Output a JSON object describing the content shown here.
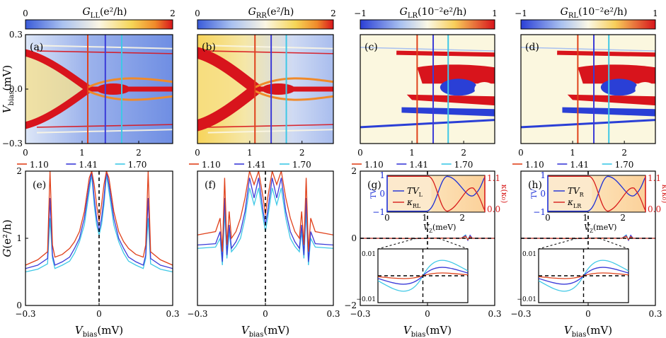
{
  "colors": {
    "vline_red": "#e0421c",
    "vline_blue": "#3b3bd8",
    "vline_cyan": "#3ec8e6",
    "trace_red": "#e0421c",
    "trace_blue": "#3b3bd8",
    "trace_cyan": "#3ec8e6",
    "inset_left_axis": "#1c2fd8",
    "inset_right_axis": "#d81c1c",
    "inset_bg": "#fbd9a8"
  },
  "chart_data": [
    {
      "id": "a",
      "type": "heatmap",
      "panel_label": "(a)",
      "colorbar": {
        "title_main": "G",
        "title_sub": "LL",
        "title_unit": "(e²/h)",
        "min_label": "0",
        "max_label": "2",
        "scheme": "sequential"
      },
      "x_ticks": [
        "0",
        "1",
        "2"
      ],
      "x_values": [
        0,
        1,
        2
      ],
      "xlim": [
        0,
        2.6
      ],
      "y_ticks": [
        "0.3",
        "0.0",
        "−0.3"
      ],
      "y_values": [
        0.3,
        0.0,
        -0.3
      ],
      "ylim": [
        -0.3,
        0.3
      ],
      "ylabel_main": "V",
      "ylabel_sub": "bias",
      "ylabel_unit": "(mV)",
      "vlines": [
        1.1,
        1.41,
        1.7
      ]
    },
    {
      "id": "b",
      "type": "heatmap",
      "panel_label": "(b)",
      "colorbar": {
        "title_main": "G",
        "title_sub": "RR",
        "title_unit": "(e²/h)",
        "min_label": "0",
        "max_label": "2",
        "scheme": "sequential"
      },
      "x_ticks": [
        "0",
        "1",
        "2"
      ],
      "x_values": [
        0,
        1,
        2
      ],
      "xlim": [
        0,
        2.6
      ],
      "vlines": [
        1.1,
        1.41,
        1.7
      ]
    },
    {
      "id": "c",
      "type": "heatmap",
      "panel_label": "(c)",
      "colorbar": {
        "title_main": "G",
        "title_sub": "LR",
        "title_unit": "(10⁻²e²/h)",
        "min_label": "−1",
        "max_label": "1",
        "scheme": "diverging"
      },
      "x_ticks": [
        "0",
        "1",
        "2"
      ],
      "x_values": [
        0,
        1,
        2
      ],
      "xlim": [
        0,
        2.6
      ],
      "vlines": [
        1.1,
        1.41,
        1.7
      ]
    },
    {
      "id": "d",
      "type": "heatmap",
      "panel_label": "(d)",
      "colorbar": {
        "title_main": "G",
        "title_sub": "RL",
        "title_unit": "(10⁻²e²/h)",
        "min_label": "−1",
        "max_label": "1",
        "scheme": "diverging"
      },
      "x_ticks": [
        "0",
        "1",
        "2"
      ],
      "x_values": [
        0,
        1,
        2
      ],
      "xlim": [
        0,
        2.6
      ],
      "vlines": [
        1.1,
        1.41,
        1.7
      ]
    },
    {
      "id": "e",
      "type": "line",
      "panel_label": "(e)",
      "legend": [
        "1.10",
        "1.41",
        "1.70"
      ],
      "x_ticks": [
        "−0.3",
        "0",
        "0.3"
      ],
      "x_values": [
        -0.3,
        0,
        0.3
      ],
      "xlim": [
        -0.3,
        0.3
      ],
      "y_ticks": [
        "2",
        "1",
        "0"
      ],
      "y_values": [
        2,
        1,
        0
      ],
      "ylim": [
        0,
        2
      ],
      "xlabel_main": "V",
      "xlabel_sub": "bias",
      "xlabel_unit": "(mV)",
      "ylabel_main": "G",
      "ylabel_unit": "(e²/h)",
      "series": [
        {
          "name": "1.10",
          "color_key": "trace_red",
          "x": [
            -0.3,
            -0.25,
            -0.21,
            -0.2,
            -0.19,
            -0.18,
            -0.15,
            -0.12,
            -0.1,
            -0.08,
            -0.06,
            -0.04,
            -0.03,
            -0.02,
            -0.01,
            0.0,
            0.01,
            0.02,
            0.03,
            0.04,
            0.06,
            0.08,
            0.1,
            0.12,
            0.15,
            0.18,
            0.19,
            0.2,
            0.21,
            0.25,
            0.3
          ],
          "y": [
            0.6,
            0.68,
            0.8,
            2.0,
            0.9,
            0.72,
            0.76,
            0.85,
            0.95,
            1.1,
            1.4,
            1.9,
            2.0,
            1.8,
            1.5,
            1.25,
            1.5,
            1.8,
            2.0,
            1.9,
            1.4,
            1.1,
            0.95,
            0.85,
            0.76,
            0.72,
            0.9,
            2.0,
            0.8,
            0.68,
            0.6
          ]
        },
        {
          "name": "1.41",
          "color_key": "trace_blue",
          "x": [
            -0.3,
            -0.25,
            -0.21,
            -0.2,
            -0.19,
            -0.18,
            -0.15,
            -0.12,
            -0.1,
            -0.08,
            -0.06,
            -0.04,
            -0.03,
            -0.02,
            -0.01,
            0.0,
            0.01,
            0.02,
            0.03,
            0.04,
            0.06,
            0.08,
            0.1,
            0.12,
            0.15,
            0.18,
            0.19,
            0.2,
            0.21,
            0.25,
            0.3
          ],
          "y": [
            0.55,
            0.6,
            0.7,
            1.6,
            0.75,
            0.6,
            0.65,
            0.72,
            0.85,
            1.0,
            1.3,
            1.8,
            2.0,
            1.6,
            1.3,
            1.1,
            1.3,
            1.6,
            2.0,
            1.8,
            1.3,
            1.0,
            0.85,
            0.72,
            0.65,
            0.6,
            0.75,
            1.6,
            0.7,
            0.6,
            0.55
          ]
        },
        {
          "name": "1.70",
          "color_key": "trace_cyan",
          "x": [
            -0.3,
            -0.25,
            -0.21,
            -0.2,
            -0.19,
            -0.18,
            -0.15,
            -0.12,
            -0.1,
            -0.08,
            -0.06,
            -0.04,
            -0.03,
            -0.02,
            -0.01,
            0.0,
            0.01,
            0.02,
            0.03,
            0.04,
            0.06,
            0.08,
            0.1,
            0.12,
            0.15,
            0.18,
            0.19,
            0.2,
            0.21,
            0.25,
            0.3
          ],
          "y": [
            0.5,
            0.54,
            0.62,
            1.3,
            0.7,
            0.55,
            0.6,
            0.66,
            0.78,
            0.95,
            1.2,
            1.7,
            1.95,
            1.5,
            1.2,
            1.05,
            1.2,
            1.5,
            1.95,
            1.7,
            1.2,
            0.95,
            0.78,
            0.66,
            0.6,
            0.55,
            0.7,
            1.3,
            0.62,
            0.54,
            0.5
          ]
        }
      ]
    },
    {
      "id": "f",
      "type": "line",
      "panel_label": "(f)",
      "legend": [
        "1.10",
        "1.41",
        "1.70"
      ],
      "x_ticks": [
        "−0.3",
        "0",
        "0.3"
      ],
      "x_values": [
        -0.3,
        0,
        0.3
      ],
      "xlim": [
        -0.3,
        0.3
      ],
      "xlabel_main": "V",
      "xlabel_sub": "bias",
      "xlabel_unit": "(mV)",
      "series": [
        {
          "name": "1.10",
          "color_key": "trace_red",
          "x": [
            -0.3,
            -0.22,
            -0.2,
            -0.19,
            -0.18,
            -0.17,
            -0.16,
            -0.15,
            -0.13,
            -0.11,
            -0.09,
            -0.07,
            -0.05,
            -0.03,
            -0.01,
            0.0,
            0.01,
            0.03,
            0.05,
            0.07,
            0.09,
            0.11,
            0.13,
            0.15,
            0.16,
            0.17,
            0.18,
            0.19,
            0.2,
            0.22,
            0.3
          ],
          "y": [
            1.05,
            1.1,
            1.3,
            0.8,
            1.9,
            0.9,
            1.4,
            1.0,
            1.1,
            1.3,
            1.6,
            2.0,
            1.8,
            2.0,
            1.6,
            1.35,
            1.6,
            2.0,
            1.8,
            2.0,
            1.6,
            1.3,
            1.1,
            1.0,
            1.4,
            0.9,
            1.9,
            0.8,
            1.3,
            1.1,
            1.05
          ]
        },
        {
          "name": "1.41",
          "color_key": "trace_blue",
          "x": [
            -0.3,
            -0.22,
            -0.2,
            -0.19,
            -0.18,
            -0.17,
            -0.16,
            -0.15,
            -0.13,
            -0.11,
            -0.09,
            -0.07,
            -0.05,
            -0.03,
            -0.01,
            0.0,
            0.01,
            0.03,
            0.05,
            0.07,
            0.09,
            0.11,
            0.13,
            0.15,
            0.16,
            0.17,
            0.18,
            0.19,
            0.2,
            0.22,
            0.3
          ],
          "y": [
            0.9,
            0.92,
            1.1,
            0.65,
            1.6,
            0.75,
            1.2,
            0.85,
            0.95,
            1.1,
            1.4,
            1.9,
            1.6,
            1.9,
            1.4,
            1.2,
            1.4,
            1.9,
            1.6,
            1.9,
            1.4,
            1.1,
            0.95,
            0.85,
            1.2,
            0.75,
            1.6,
            0.65,
            1.1,
            0.92,
            0.9
          ]
        },
        {
          "name": "1.70",
          "color_key": "trace_cyan",
          "x": [
            -0.3,
            -0.22,
            -0.2,
            -0.19,
            -0.18,
            -0.17,
            -0.16,
            -0.15,
            -0.13,
            -0.11,
            -0.09,
            -0.07,
            -0.05,
            -0.03,
            -0.01,
            0.0,
            0.01,
            0.03,
            0.05,
            0.07,
            0.09,
            0.11,
            0.13,
            0.15,
            0.16,
            0.17,
            0.18,
            0.19,
            0.2,
            0.22,
            0.3
          ],
          "y": [
            0.85,
            0.87,
            1.0,
            0.6,
            1.4,
            0.7,
            1.1,
            0.8,
            0.88,
            1.0,
            1.3,
            1.75,
            1.5,
            1.75,
            1.3,
            1.1,
            1.3,
            1.75,
            1.5,
            1.75,
            1.3,
            1.0,
            0.88,
            0.8,
            1.1,
            0.7,
            1.4,
            0.6,
            1.0,
            0.87,
            0.85
          ]
        }
      ]
    },
    {
      "id": "g",
      "type": "line",
      "panel_label": "(g)",
      "legend": [
        "1.10",
        "1.41",
        "1.70"
      ],
      "x_ticks": [
        "−0.3",
        "0",
        "0.3"
      ],
      "x_values": [
        -0.3,
        0,
        0.3
      ],
      "xlim": [
        -0.3,
        0.3
      ],
      "y_ticks": [
        "2",
        "0",
        "−2"
      ],
      "y_values": [
        2,
        0,
        -2
      ],
      "ylim": [
        -2,
        2
      ],
      "xlabel_main": "V",
      "xlabel_sub": "bias",
      "xlabel_unit": "(mV)",
      "series": [
        {
          "name": "1.10",
          "color_key": "trace_red",
          "x": [
            -0.3,
            -0.2,
            -0.05,
            0.0,
            0.05,
            0.15,
            0.17,
            0.18,
            0.19,
            0.2,
            0.3
          ],
          "y": [
            0,
            0,
            -0.005,
            0,
            0.005,
            0.0,
            0.06,
            -0.04,
            0.05,
            0.0,
            0
          ]
        },
        {
          "name": "1.41",
          "color_key": "trace_blue",
          "x": [
            -0.3,
            -0.2,
            -0.05,
            0.0,
            0.05,
            0.15,
            0.17,
            0.18,
            0.19,
            0.2,
            0.3
          ],
          "y": [
            0,
            0,
            -0.006,
            0,
            0.006,
            0.0,
            0.08,
            -0.06,
            0.09,
            0.0,
            0
          ]
        },
        {
          "name": "1.70",
          "color_key": "trace_cyan",
          "x": [
            -0.3,
            -0.2,
            -0.05,
            0.0,
            0.05,
            0.15,
            0.17,
            0.18,
            0.19,
            0.2,
            0.3
          ],
          "y": [
            0,
            0,
            -0.009,
            0,
            0.009,
            0.0,
            0.1,
            -0.05,
            0.07,
            0.0,
            0
          ]
        }
      ],
      "inset_top": {
        "legend_tv": {
          "main": "TV",
          "sub": "L"
        },
        "legend_kappa": {
          "main": "κ",
          "sub": "RL"
        },
        "left_ylabel": "TV",
        "left_ticks": [
          "1",
          "0",
          "−1"
        ],
        "left_values": [
          1,
          0,
          -1
        ],
        "right_ylabel": "κ(κ₀)",
        "right_ticks": [
          "1.1",
          "0.0"
        ],
        "right_values": [
          1.1,
          0.0
        ],
        "x_ticks": [
          "0",
          "1",
          "2"
        ],
        "x_values": [
          0,
          1,
          2
        ],
        "xlabel_main": "V",
        "xlabel_sub": "Z",
        "xlabel_unit": "(meV)"
      },
      "inset_zoom": {
        "y_ticks": [
          "0.01",
          "−0.01"
        ],
        "y_values": [
          0.01,
          -0.01
        ]
      }
    },
    {
      "id": "h",
      "type": "line",
      "panel_label": "(h)",
      "legend": [
        "1.10",
        "1.41",
        "1.70"
      ],
      "x_ticks": [
        "−0.3",
        "0",
        "0.3"
      ],
      "x_values": [
        -0.3,
        0,
        0.3
      ],
      "xlim": [
        -0.3,
        0.3
      ],
      "xlabel_main": "V",
      "xlabel_sub": "bias",
      "xlabel_unit": "(mV)",
      "series": [
        {
          "name": "1.10",
          "color_key": "trace_red",
          "x": [
            -0.3,
            -0.2,
            -0.05,
            0.0,
            0.05,
            0.15,
            0.17,
            0.18,
            0.19,
            0.2,
            0.3
          ],
          "y": [
            0,
            0,
            -0.004,
            0,
            0.004,
            0.0,
            0.06,
            -0.04,
            0.05,
            0.0,
            0
          ]
        },
        {
          "name": "1.41",
          "color_key": "trace_blue",
          "x": [
            -0.3,
            -0.2,
            -0.05,
            0.0,
            0.05,
            0.15,
            0.17,
            0.18,
            0.19,
            0.2,
            0.3
          ],
          "y": [
            0,
            0,
            -0.007,
            0,
            0.006,
            0.0,
            0.08,
            -0.06,
            0.09,
            0.0,
            0
          ]
        },
        {
          "name": "1.70",
          "color_key": "trace_cyan",
          "x": [
            -0.3,
            -0.2,
            -0.05,
            0.0,
            0.05,
            0.15,
            0.17,
            0.18,
            0.19,
            0.2,
            0.3
          ],
          "y": [
            0,
            0,
            -0.01,
            0,
            0.012,
            0.0,
            0.1,
            -0.05,
            0.07,
            0.0,
            0
          ]
        }
      ],
      "inset_top": {
        "legend_tv": {
          "main": "TV",
          "sub": "R"
        },
        "legend_kappa": {
          "main": "κ",
          "sub": "LR"
        },
        "left_ylabel": "TV",
        "left_ticks": [
          "1",
          "0",
          "−1"
        ],
        "left_values": [
          1,
          0,
          -1
        ],
        "right_ylabel": "κ(κ₀)",
        "right_ticks": [
          "1.1",
          "0.0"
        ],
        "right_values": [
          1.1,
          0.0
        ],
        "x_ticks": [
          "0",
          "1",
          "2"
        ],
        "x_values": [
          0,
          1,
          2
        ],
        "xlabel_main": "V",
        "xlabel_sub": "Z",
        "xlabel_unit": "(meV)"
      },
      "inset_zoom": {
        "y_ticks": [
          "0.01",
          "−0.01"
        ],
        "y_values": [
          0.01,
          -0.01
        ]
      }
    }
  ]
}
